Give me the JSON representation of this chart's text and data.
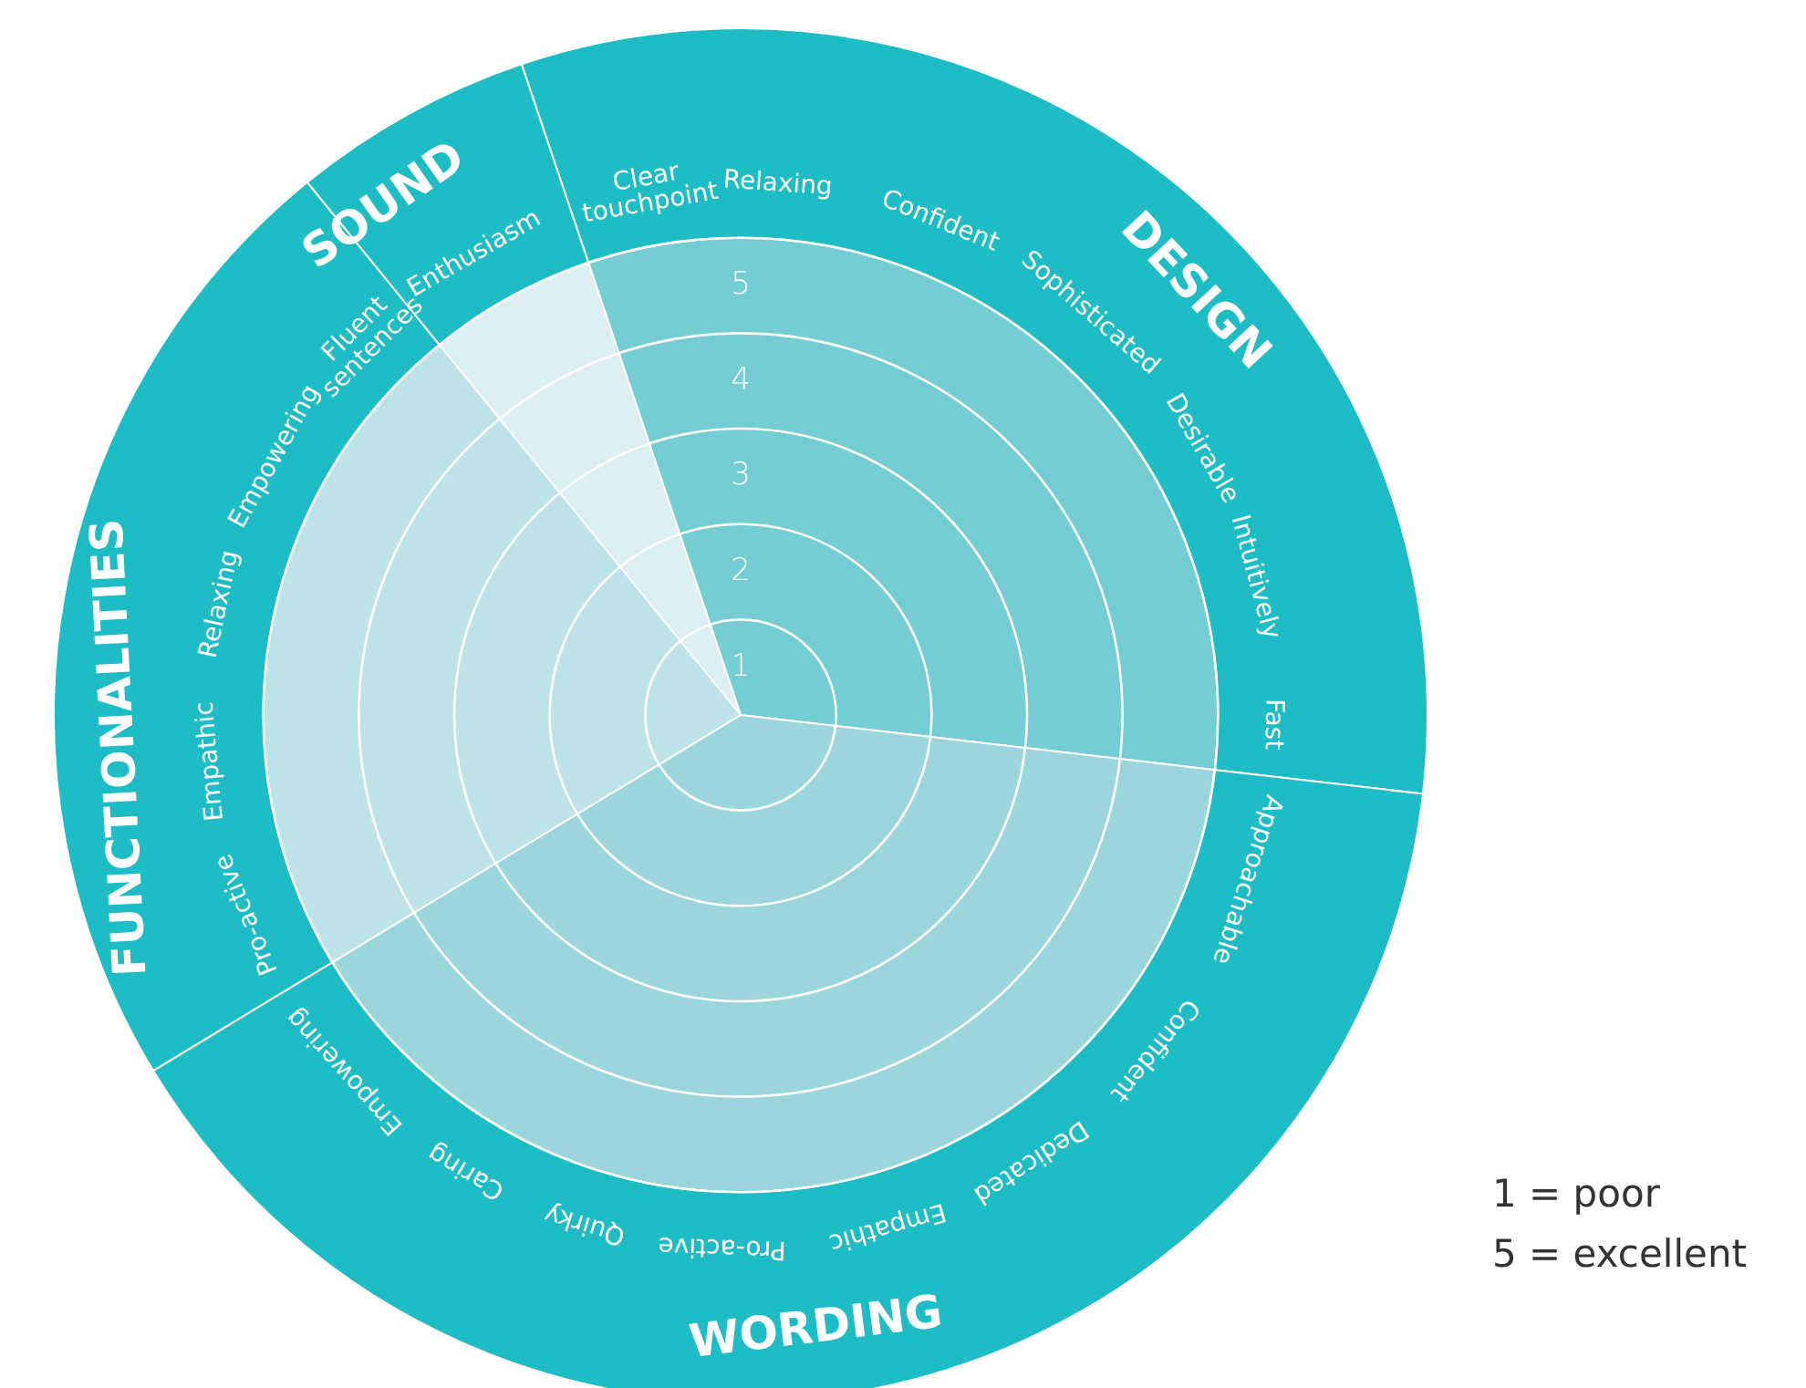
{
  "chart_data": {
    "type": "pie",
    "categories": [
      "DESIGN",
      "WORDING",
      "FUNCTIONALITIES",
      "SOUND"
    ],
    "series": [
      {
        "type": "pie",
        "values": [
          32,
          39.5,
          22.8,
          5.7
        ],
        "colors": [
          "#74cdd3",
          "#9bd6dc",
          "#bde3e8",
          "#dcf0f3"
        ]
      },
      {
        "type": "donut",
        "values": [
          32,
          39.5,
          22.8,
          5.7
        ],
        "colors": [
          "#1ebdc6",
          "#1ebdc6",
          "#1ebdc6",
          "#1ebdc6"
        ]
      }
    ],
    "grid": true,
    "annotations": [
      "Clear\ntouchpoint",
      "Relaxing",
      "Confident",
      "Sophisticated",
      "Desirable",
      "Intuitively",
      "Fast",
      "Approachable",
      "Confident",
      "Dedicated",
      "Empathic",
      "Pro-active",
      "Quirky",
      "Caring",
      "Empowering",
      "Pro-active",
      "Empathic",
      "Relaxing",
      "Empowering",
      "Fluent\nsentences",
      "Enthusiasm",
      "1",
      "2",
      "3",
      "4",
      "5",
      "1 = poor",
      "5 = excellent"
    ]
  }
}
